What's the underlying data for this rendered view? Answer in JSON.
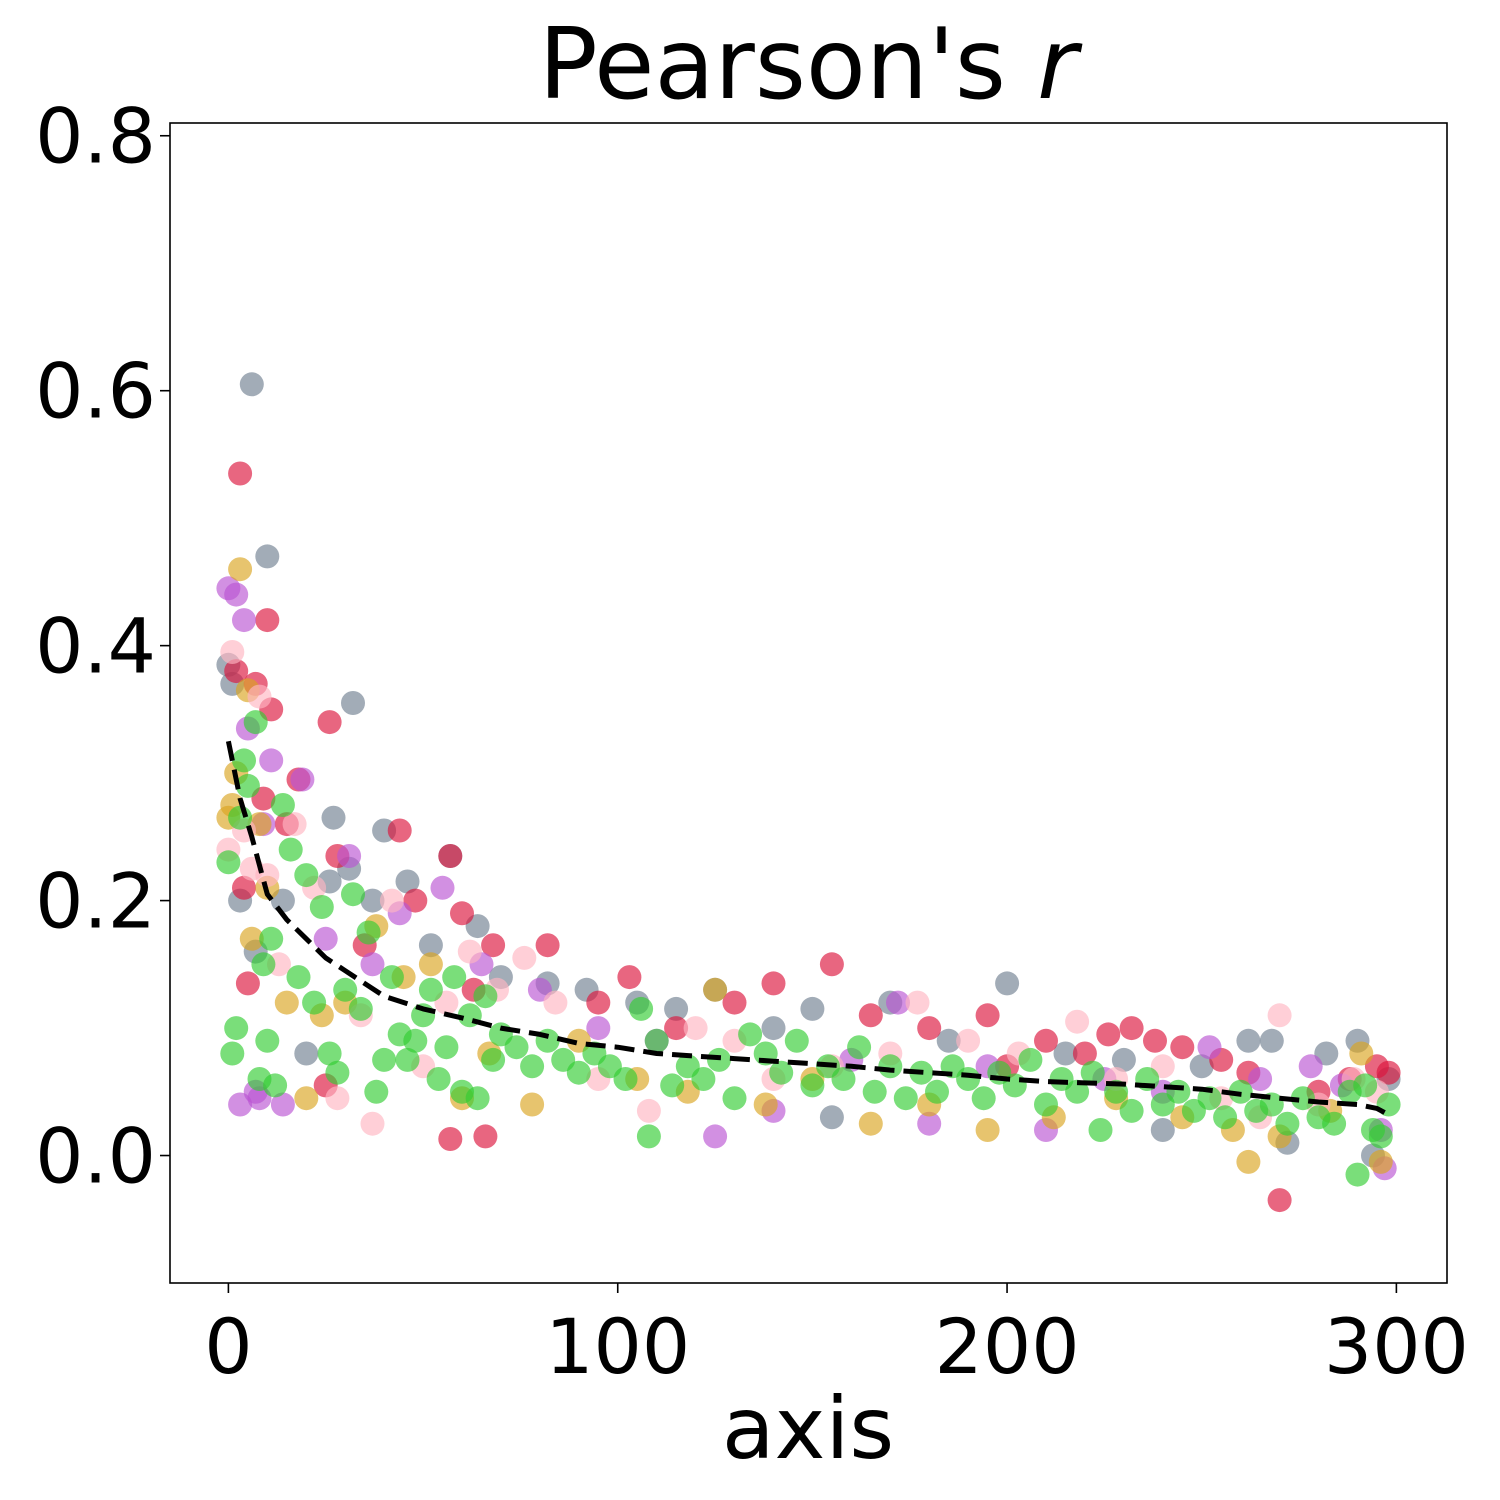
{
  "chart_data": {
    "type": "scatter",
    "title": "Pearson's",
    "title_italic": "r",
    "xlabel": "axis",
    "ylabel": "",
    "xlim": [
      -15,
      313
    ],
    "ylim": [
      -0.1,
      0.81
    ],
    "xticks": [
      0,
      100,
      200,
      300
    ],
    "xtick_labels": [
      "0",
      "100",
      "200",
      "300"
    ],
    "yticks": [
      0.0,
      0.2,
      0.4,
      0.6,
      0.8
    ],
    "ytick_labels": [
      "0.0",
      "0.2",
      "0.4",
      "0.6",
      "0.8"
    ],
    "grid": false,
    "legend": "none",
    "series": [
      {
        "color": "#708090",
        "points": [
          [
            0,
            0.385
          ],
          [
            1,
            0.37
          ],
          [
            3,
            0.2
          ],
          [
            6,
            0.605
          ],
          [
            7,
            0.16
          ],
          [
            10,
            0.47
          ],
          [
            14,
            0.2
          ],
          [
            20,
            0.08
          ],
          [
            26,
            0.215
          ],
          [
            27,
            0.265
          ],
          [
            31,
            0.225
          ],
          [
            32,
            0.355
          ],
          [
            37,
            0.2
          ],
          [
            40,
            0.255
          ],
          [
            46,
            0.215
          ],
          [
            52,
            0.165
          ],
          [
            57,
            0.235
          ],
          [
            64,
            0.18
          ],
          [
            70,
            0.14
          ],
          [
            82,
            0.135
          ],
          [
            92,
            0.13
          ],
          [
            105,
            0.12
          ],
          [
            115,
            0.115
          ],
          [
            125,
            0.13
          ],
          [
            140,
            0.1
          ],
          [
            150,
            0.115
          ],
          [
            155,
            0.03
          ],
          [
            170,
            0.12
          ],
          [
            185,
            0.09
          ],
          [
            200,
            0.135
          ],
          [
            215,
            0.08
          ],
          [
            230,
            0.075
          ],
          [
            240,
            0.02
          ],
          [
            250,
            0.07
          ],
          [
            262,
            0.09
          ],
          [
            268,
            0.09
          ],
          [
            272,
            0.01
          ],
          [
            282,
            0.08
          ],
          [
            290,
            0.09
          ],
          [
            294,
            0.0
          ],
          [
            298,
            0.06
          ]
        ]
      },
      {
        "color": "#DC143C",
        "points": [
          [
            2,
            0.38
          ],
          [
            3,
            0.535
          ],
          [
            4,
            0.21
          ],
          [
            5,
            0.135
          ],
          [
            7,
            0.37
          ],
          [
            9,
            0.28
          ],
          [
            10,
            0.42
          ],
          [
            11,
            0.35
          ],
          [
            15,
            0.26
          ],
          [
            18,
            0.295
          ],
          [
            25,
            0.055
          ],
          [
            26,
            0.34
          ],
          [
            28,
            0.235
          ],
          [
            35,
            0.165
          ],
          [
            44,
            0.255
          ],
          [
            48,
            0.2
          ],
          [
            57,
            0.235
          ],
          [
            60,
            0.19
          ],
          [
            63,
            0.13
          ],
          [
            68,
            0.165
          ],
          [
            82,
            0.165
          ],
          [
            95,
            0.12
          ],
          [
            103,
            0.14
          ],
          [
            115,
            0.1
          ],
          [
            130,
            0.12
          ],
          [
            140,
            0.135
          ],
          [
            155,
            0.15
          ],
          [
            165,
            0.11
          ],
          [
            180,
            0.1
          ],
          [
            195,
            0.11
          ],
          [
            210,
            0.09
          ],
          [
            220,
            0.08
          ],
          [
            226,
            0.095
          ],
          [
            232,
            0.1
          ],
          [
            238,
            0.09
          ],
          [
            245,
            0.085
          ],
          [
            255,
            0.075
          ],
          [
            262,
            0.065
          ],
          [
            270,
            -0.035
          ],
          [
            280,
            0.05
          ],
          [
            288,
            0.06
          ],
          [
            295,
            0.07
          ],
          [
            298,
            0.065
          ],
          [
            57,
            0.013
          ],
          [
            66,
            0.015
          ],
          [
            200,
            0.07
          ]
        ]
      },
      {
        "color": "#BA55D3",
        "points": [
          [
            0,
            0.445
          ],
          [
            2,
            0.44
          ],
          [
            4,
            0.42
          ],
          [
            5,
            0.335
          ],
          [
            7,
            0.05
          ],
          [
            9,
            0.26
          ],
          [
            11,
            0.31
          ],
          [
            14,
            0.04
          ],
          [
            19,
            0.295
          ],
          [
            25,
            0.17
          ],
          [
            31,
            0.235
          ],
          [
            37,
            0.15
          ],
          [
            44,
            0.19
          ],
          [
            55,
            0.21
          ],
          [
            65,
            0.15
          ],
          [
            80,
            0.13
          ],
          [
            95,
            0.1
          ],
          [
            110,
            0.09
          ],
          [
            125,
            0.015
          ],
          [
            140,
            0.035
          ],
          [
            160,
            0.075
          ],
          [
            172,
            0.12
          ],
          [
            180,
            0.025
          ],
          [
            195,
            0.07
          ],
          [
            210,
            0.02
          ],
          [
            225,
            0.06
          ],
          [
            240,
            0.05
          ],
          [
            252,
            0.085
          ],
          [
            265,
            0.06
          ],
          [
            278,
            0.07
          ],
          [
            286,
            0.055
          ],
          [
            296,
            0.02
          ],
          [
            297,
            -0.01
          ],
          [
            3,
            0.04
          ],
          [
            8,
            0.045
          ]
        ]
      },
      {
        "color": "#DAA520",
        "points": [
          [
            0,
            0.265
          ],
          [
            1,
            0.275
          ],
          [
            2,
            0.3
          ],
          [
            3,
            0.46
          ],
          [
            5,
            0.365
          ],
          [
            6,
            0.17
          ],
          [
            8,
            0.26
          ],
          [
            10,
            0.21
          ],
          [
            15,
            0.12
          ],
          [
            20,
            0.045
          ],
          [
            24,
            0.11
          ],
          [
            30,
            0.12
          ],
          [
            38,
            0.18
          ],
          [
            45,
            0.14
          ],
          [
            52,
            0.15
          ],
          [
            60,
            0.045
          ],
          [
            67,
            0.08
          ],
          [
            78,
            0.04
          ],
          [
            90,
            0.09
          ],
          [
            105,
            0.06
          ],
          [
            118,
            0.05
          ],
          [
            125,
            0.13
          ],
          [
            138,
            0.04
          ],
          [
            150,
            0.06
          ],
          [
            165,
            0.025
          ],
          [
            180,
            0.04
          ],
          [
            195,
            0.02
          ],
          [
            212,
            0.03
          ],
          [
            228,
            0.045
          ],
          [
            245,
            0.03
          ],
          [
            258,
            0.02
          ],
          [
            262,
            -0.005
          ],
          [
            270,
            0.015
          ],
          [
            283,
            0.035
          ],
          [
            291,
            0.08
          ],
          [
            296,
            -0.005
          ]
        ]
      },
      {
        "color": "#FFB6C1",
        "points": [
          [
            0,
            0.24
          ],
          [
            1,
            0.395
          ],
          [
            4,
            0.255
          ],
          [
            6,
            0.225
          ],
          [
            8,
            0.36
          ],
          [
            10,
            0.22
          ],
          [
            13,
            0.15
          ],
          [
            17,
            0.26
          ],
          [
            22,
            0.21
          ],
          [
            28,
            0.045
          ],
          [
            34,
            0.11
          ],
          [
            37,
            0.025
          ],
          [
            42,
            0.2
          ],
          [
            50,
            0.07
          ],
          [
            56,
            0.12
          ],
          [
            62,
            0.16
          ],
          [
            69,
            0.13
          ],
          [
            76,
            0.155
          ],
          [
            84,
            0.12
          ],
          [
            95,
            0.06
          ],
          [
            108,
            0.035
          ],
          [
            120,
            0.1
          ],
          [
            130,
            0.09
          ],
          [
            140,
            0.06
          ],
          [
            155,
            0.07
          ],
          [
            170,
            0.08
          ],
          [
            177,
            0.12
          ],
          [
            190,
            0.09
          ],
          [
            203,
            0.08
          ],
          [
            218,
            0.105
          ],
          [
            228,
            0.06
          ],
          [
            240,
            0.07
          ],
          [
            255,
            0.045
          ],
          [
            265,
            0.03
          ],
          [
            270,
            0.11
          ],
          [
            280,
            0.04
          ],
          [
            289,
            0.06
          ],
          [
            295,
            0.05
          ]
        ]
      },
      {
        "color": "#32CD32",
        "points": [
          [
            0,
            0.23
          ],
          [
            1,
            0.08
          ],
          [
            2,
            0.1
          ],
          [
            3,
            0.265
          ],
          [
            4,
            0.31
          ],
          [
            5,
            0.29
          ],
          [
            7,
            0.34
          ],
          [
            8,
            0.06
          ],
          [
            9,
            0.15
          ],
          [
            10,
            0.09
          ],
          [
            11,
            0.17
          ],
          [
            12,
            0.055
          ],
          [
            14,
            0.275
          ],
          [
            16,
            0.24
          ],
          [
            18,
            0.14
          ],
          [
            20,
            0.22
          ],
          [
            22,
            0.12
          ],
          [
            24,
            0.195
          ],
          [
            26,
            0.08
          ],
          [
            28,
            0.065
          ],
          [
            30,
            0.13
          ],
          [
            32,
            0.205
          ],
          [
            34,
            0.115
          ],
          [
            36,
            0.175
          ],
          [
            38,
            0.05
          ],
          [
            40,
            0.075
          ],
          [
            42,
            0.14
          ],
          [
            44,
            0.095
          ],
          [
            46,
            0.075
          ],
          [
            48,
            0.09
          ],
          [
            50,
            0.11
          ],
          [
            52,
            0.13
          ],
          [
            54,
            0.06
          ],
          [
            56,
            0.085
          ],
          [
            58,
            0.14
          ],
          [
            60,
            0.05
          ],
          [
            62,
            0.11
          ],
          [
            64,
            0.045
          ],
          [
            66,
            0.125
          ],
          [
            68,
            0.075
          ],
          [
            70,
            0.095
          ],
          [
            74,
            0.085
          ],
          [
            78,
            0.07
          ],
          [
            82,
            0.09
          ],
          [
            86,
            0.075
          ],
          [
            90,
            0.065
          ],
          [
            94,
            0.08
          ],
          [
            98,
            0.07
          ],
          [
            102,
            0.06
          ],
          [
            106,
            0.115
          ],
          [
            108,
            0.015
          ],
          [
            110,
            0.09
          ],
          [
            114,
            0.055
          ],
          [
            118,
            0.07
          ],
          [
            122,
            0.06
          ],
          [
            126,
            0.075
          ],
          [
            130,
            0.045
          ],
          [
            134,
            0.095
          ],
          [
            138,
            0.08
          ],
          [
            142,
            0.065
          ],
          [
            146,
            0.09
          ],
          [
            150,
            0.055
          ],
          [
            154,
            0.07
          ],
          [
            158,
            0.06
          ],
          [
            162,
            0.085
          ],
          [
            166,
            0.05
          ],
          [
            170,
            0.07
          ],
          [
            174,
            0.045
          ],
          [
            178,
            0.065
          ],
          [
            182,
            0.05
          ],
          [
            186,
            0.07
          ],
          [
            190,
            0.06
          ],
          [
            194,
            0.045
          ],
          [
            198,
            0.065
          ],
          [
            202,
            0.055
          ],
          [
            206,
            0.075
          ],
          [
            210,
            0.04
          ],
          [
            214,
            0.06
          ],
          [
            218,
            0.05
          ],
          [
            222,
            0.065
          ],
          [
            224,
            0.02
          ],
          [
            228,
            0.05
          ],
          [
            232,
            0.035
          ],
          [
            236,
            0.06
          ],
          [
            240,
            0.04
          ],
          [
            244,
            0.05
          ],
          [
            248,
            0.035
          ],
          [
            252,
            0.045
          ],
          [
            256,
            0.03
          ],
          [
            260,
            0.05
          ],
          [
            264,
            0.035
          ],
          [
            268,
            0.04
          ],
          [
            272,
            0.025
          ],
          [
            276,
            0.045
          ],
          [
            280,
            0.03
          ],
          [
            284,
            0.025
          ],
          [
            288,
            0.05
          ],
          [
            290,
            -0.015
          ],
          [
            292,
            0.055
          ],
          [
            294,
            0.02
          ],
          [
            296,
            0.015
          ],
          [
            298,
            0.04
          ]
        ]
      }
    ],
    "trend": {
      "style": "dashed",
      "color": "#000000",
      "x": [
        0,
        3,
        6,
        10,
        15,
        20,
        25,
        30,
        40,
        50,
        60,
        70,
        80,
        90,
        100,
        110,
        120,
        130,
        140,
        150,
        160,
        170,
        180,
        190,
        200,
        210,
        220,
        230,
        240,
        250,
        260,
        270,
        280,
        290,
        295,
        298
      ],
      "y": [
        0.325,
        0.28,
        0.25,
        0.205,
        0.185,
        0.17,
        0.155,
        0.145,
        0.125,
        0.115,
        0.108,
        0.1,
        0.095,
        0.088,
        0.085,
        0.08,
        0.078,
        0.076,
        0.074,
        0.072,
        0.07,
        0.067,
        0.065,
        0.063,
        0.06,
        0.058,
        0.057,
        0.056,
        0.054,
        0.052,
        0.048,
        0.045,
        0.042,
        0.04,
        0.037,
        0.032
      ]
    }
  }
}
